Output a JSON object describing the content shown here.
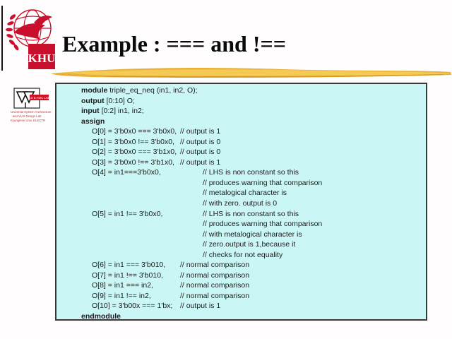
{
  "slide": {
    "title": "Example : === and !=="
  },
  "colors": {
    "accent_red": "#c8102e",
    "swoosh_gold": "#e9b03a",
    "swoosh_gold_light": "#f4ca52",
    "code_box_bg": "#cbf6f6",
    "code_box_border": "#3a3a3a",
    "title_text": "#0a0a0a"
  },
  "logos": {
    "khu": {
      "label": "KHU"
    },
    "lab": {
      "badge": "CS & ASIC LAB",
      "lines": [
        "Universal System Architecture",
        "and VLSI Design Lab",
        "KyungHee Univ. ELECTR"
      ]
    }
  },
  "code": {
    "lines": [
      {
        "kw": "module",
        "code": " triple_eq_neq (in1, in2, O);",
        "indent": 0
      },
      {
        "kw": "output",
        "code": " [0:10] O;",
        "indent": 0
      },
      {
        "kw": "input",
        "code": " [0:2] in1, in2;",
        "indent": 0
      },
      {
        "kw": "assign",
        "code": "",
        "indent": 0
      },
      {
        "code": "O[0] = 3'b0x0 === 3'b0x0,",
        "comment": "// output is 1",
        "indent": 1,
        "block": "b"
      },
      {
        "code": "O[1] = 3'b0x0 !== 3'b0x0,",
        "comment": "// output is 0",
        "indent": 1,
        "block": "b"
      },
      {
        "code": "O[2] = 3'b0x0 === 3'b1x0,",
        "comment": "// output is 0",
        "indent": 1,
        "block": "b"
      },
      {
        "code": "O[3] = 3'b0x0 !== 3'b1x0,",
        "comment": "// output is 1",
        "indent": 1,
        "block": "b"
      },
      {
        "code": "O[4] = in1===3'b0x0,",
        "comment": "// LHS is non constant so this",
        "indent": 1,
        "block": "a"
      },
      {
        "code": "",
        "comment": "// produces warning that comparison",
        "indent": 1,
        "block": "a"
      },
      {
        "code": "",
        "comment": "// metalogical character is",
        "indent": 1,
        "block": "a"
      },
      {
        "code": "",
        "comment": "// with zero. output is 0",
        "indent": 1,
        "block": "a"
      },
      {
        "code": "O[5] = in1 !== 3'b0x0,",
        "comment": "// LHS is non constant so this",
        "indent": 1,
        "block": "a"
      },
      {
        "code": "",
        "comment": "// produces warning that comparison",
        "indent": 1,
        "block": "a"
      },
      {
        "code": "",
        "comment": "// with metalogical character is",
        "indent": 1,
        "block": "a"
      },
      {
        "code": "",
        "comment": "// zero.output is 1,because it",
        "indent": 1,
        "block": "a"
      },
      {
        "code": "",
        "comment": "// checks for not equality",
        "indent": 1,
        "block": "a"
      },
      {
        "code": "O[6] = in1 === 3'b010,",
        "comment": "// normal comparison",
        "indent": 1,
        "block": "b"
      },
      {
        "code": "O[7] = in1 !== 3'b010,",
        "comment": "// normal comparison",
        "indent": 1,
        "block": "b"
      },
      {
        "code": "O[8] = in1 === in2,",
        "comment": "// normal comparison",
        "indent": 1,
        "block": "b"
      },
      {
        "code": "O[9] = in1 !== in2,",
        "comment": "// normal comparison",
        "indent": 1,
        "block": "b"
      },
      {
        "code": "O[10] = 3'b00x === 1'bx;",
        "comment": "// output is 1",
        "indent": 1,
        "block": "b"
      },
      {
        "kw": "endmodule",
        "code": "",
        "indent": 0
      }
    ]
  }
}
